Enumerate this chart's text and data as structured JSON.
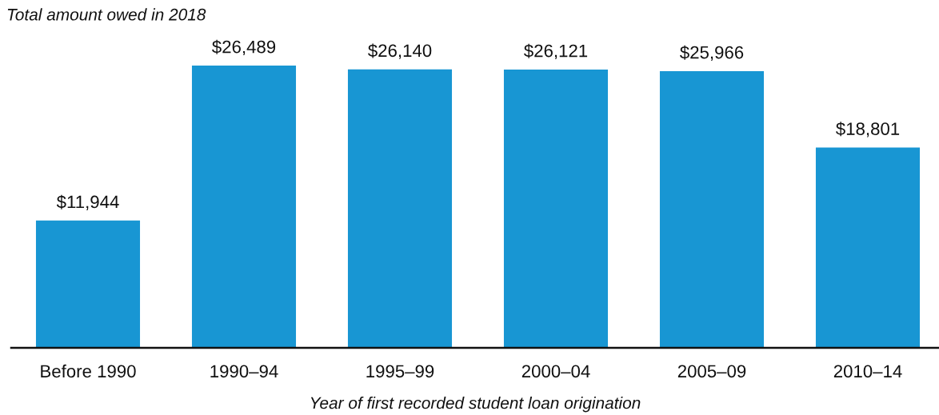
{
  "chart_data": {
    "type": "bar",
    "ylabel": "Total amount owed in 2018",
    "xlabel": "Year of first recorded student loan origination",
    "categories": [
      "Before 1990",
      "1990–94",
      "1995–99",
      "2000–04",
      "2005–09",
      "2010–14"
    ],
    "values": [
      11944,
      26489,
      26140,
      26121,
      25966,
      18801
    ],
    "color": "#1896d3",
    "value_labels": [
      "$11,944",
      "$26,489",
      "$26,140",
      "$26,121",
      "$25,966",
      "$18,801"
    ]
  }
}
